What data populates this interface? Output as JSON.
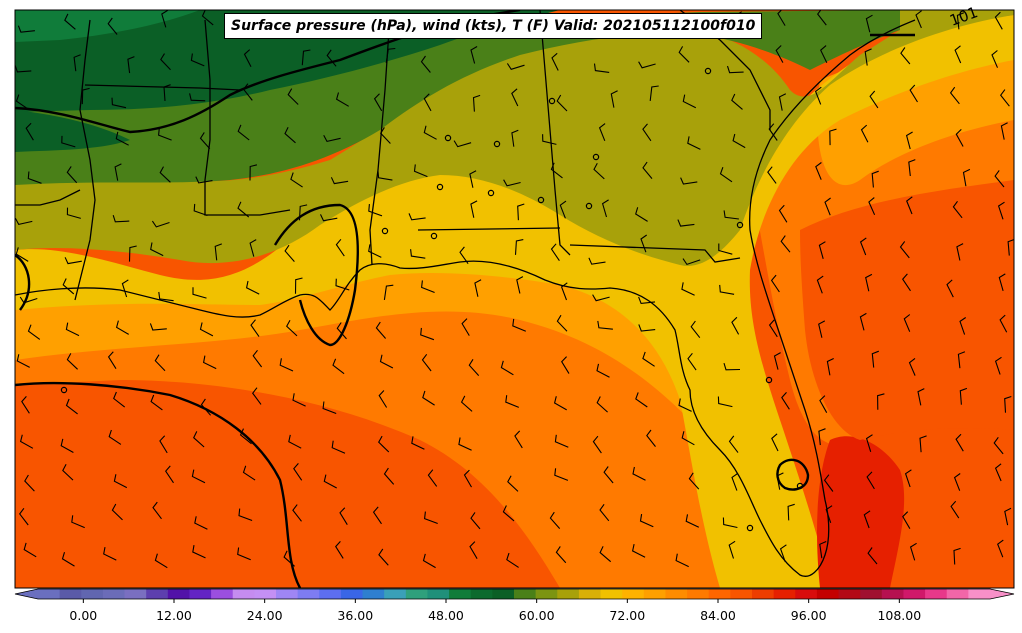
{
  "title": "Surface pressure (hPa), wind (kts), T (F) Valid: 202105112100f010",
  "isobar_label": "101",
  "colorbar": {
    "tick_labels": [
      "0.00",
      "12.00",
      "24.00",
      "36.00",
      "48.00",
      "60.00",
      "72.00",
      "84.00",
      "96.00",
      "108.00"
    ],
    "tick_values": [
      0,
      12,
      24,
      36,
      48,
      60,
      72,
      84,
      96,
      108
    ],
    "min": -6,
    "max": 120,
    "step": 3,
    "colors": [
      "#6a6fbf",
      "#5a5aa8",
      "#6166b0",
      "#6b6cb8",
      "#7a6fc0",
      "#5d3fae",
      "#5212a8",
      "#6324c4",
      "#9b4fe0",
      "#c58cf0",
      "#c490f4",
      "#9f86f4",
      "#7e7cf2",
      "#5d6ef0",
      "#3a66e6",
      "#2f7fcf",
      "#3aa0b8",
      "#2fa07c",
      "#20907a",
      "#107c3a",
      "#0c6a2e",
      "#0b5f26",
      "#4a8018",
      "#7c9412",
      "#a8a10a",
      "#d8b008",
      "#f1c100",
      "#ffb200",
      "#ffa000",
      "#ff8c00",
      "#ff7a00",
      "#ff6600",
      "#f85500",
      "#ee3d00",
      "#e62000",
      "#d80c0c",
      "#c40000",
      "#b30a16",
      "#a01030",
      "#b61050",
      "#d0186a",
      "#e8388a",
      "#f266a8",
      "#f890c8"
    ]
  },
  "temperature_fill_colors": {
    "dark_green": "#0b5f26",
    "green": "#4a8018",
    "olive": "#a8a10a",
    "yellow": "#f1c100",
    "light_orange": "#ffa000",
    "orange": "#ff7a00",
    "deep_orange": "#f85500",
    "red_orange": "#e62000"
  },
  "icons": [
    "wind-barb",
    "isobar-line",
    "station-marker"
  ]
}
